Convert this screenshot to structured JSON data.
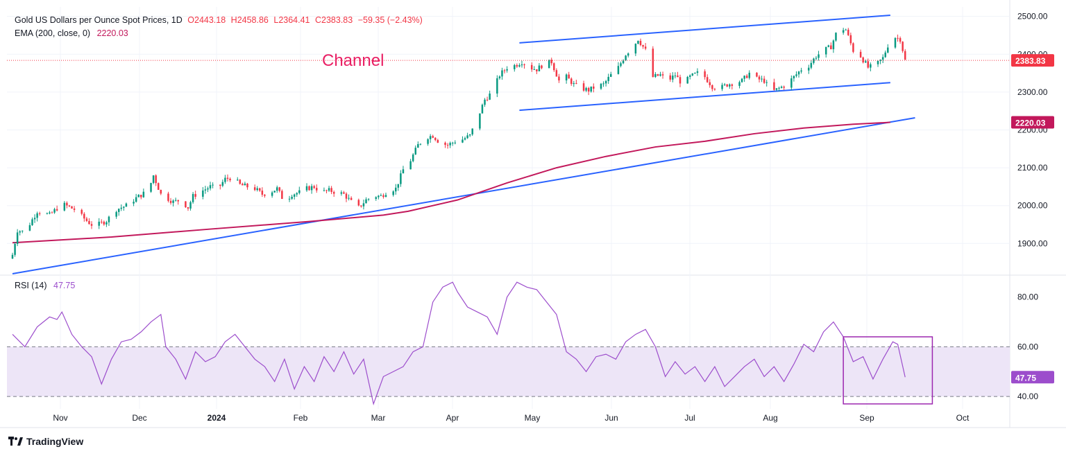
{
  "header": {
    "title": "Gold US Dollars per Ounce Spot Prices, 1D",
    "open": "O2443.18",
    "high": "H2458.86",
    "low": "L2364.41",
    "close": "C2383.83",
    "change": "−59.35 (−2.43%)",
    "ema_label": "EMA (200, close, 0)",
    "ema_value": "2220.03",
    "rsi_label": "RSI (14)",
    "rsi_value": "47.75"
  },
  "annotation": "Channel",
  "brand": "TradingView",
  "colors": {
    "up": "#089981",
    "down": "#f23645",
    "ema": "#c2185b",
    "trendline": "#2962ff",
    "rsi": "#9c4dcc",
    "rsi_band": "#ede5f7",
    "box": "#9c27b0"
  },
  "chart_data": [
    {
      "type": "candlestick",
      "title": "Gold US Dollars per Ounce Spot Prices, 1D",
      "x_ticks": [
        "Nov",
        "Dec",
        "2024",
        "Feb",
        "Mar",
        "Apr",
        "May",
        "Jun",
        "Jul",
        "Aug",
        "Sep",
        "Oct"
      ],
      "y_ticks": [
        1900,
        2000,
        2100,
        2200,
        2300,
        2400,
        2500
      ],
      "ylim": [
        1820,
        2525
      ],
      "close_path": [
        [
          0,
          1870
        ],
        [
          2,
          1935
        ],
        [
          5,
          1930
        ],
        [
          10,
          1985
        ],
        [
          15,
          1975
        ],
        [
          20,
          2005
        ],
        [
          25,
          1990
        ],
        [
          30,
          1960
        ],
        [
          33,
          1945
        ],
        [
          38,
          1960
        ],
        [
          42,
          1990
        ],
        [
          46,
          2000
        ],
        [
          50,
          2020
        ],
        [
          55,
          2040
        ],
        [
          57,
          2080
        ],
        [
          60,
          2030
        ],
        [
          65,
          2010
        ],
        [
          68,
          2015
        ],
        [
          71,
          1995
        ],
        [
          73,
          2025
        ],
        [
          77,
          2040
        ],
        [
          80,
          2050
        ],
        [
          83,
          2045
        ],
        [
          86,
          2070
        ],
        [
          89,
          2075
        ],
        [
          92,
          2055
        ],
        [
          95,
          2050
        ],
        [
          98,
          2045
        ],
        [
          101,
          2030
        ],
        [
          104,
          2035
        ],
        [
          107,
          2045
        ],
        [
          110,
          2010
        ],
        [
          113,
          2030
        ],
        [
          116,
          2035
        ],
        [
          119,
          2045
        ],
        [
          122,
          2050
        ],
        [
          125,
          2035
        ],
        [
          128,
          2040
        ],
        [
          131,
          2035
        ],
        [
          134,
          2030
        ],
        [
          137,
          2010
        ],
        [
          140,
          1995
        ],
        [
          143,
          2015
        ],
        [
          146,
          2025
        ],
        [
          149,
          2025
        ],
        [
          152,
          2040
        ],
        [
          155,
          2045
        ],
        [
          158,
          2095
        ],
        [
          161,
          2120
        ],
        [
          164,
          2160
        ],
        [
          167,
          2180
        ],
        [
          170,
          2185
        ],
        [
          173,
          2165
        ],
        [
          176,
          2160
        ],
        [
          179,
          2170
        ],
        [
          182,
          2175
        ],
        [
          185,
          2185
        ],
        [
          188,
          2230
        ],
        [
          191,
          2280
        ],
        [
          194,
          2300
        ],
        [
          197,
          2345
        ],
        [
          200,
          2365
        ],
        [
          203,
          2370
        ],
        [
          206,
          2380
        ],
        [
          209,
          2365
        ],
        [
          212,
          2360
        ],
        [
          215,
          2375
        ],
        [
          218,
          2380
        ],
        [
          221,
          2330
        ],
        [
          224,
          2340
        ],
        [
          227,
          2320
        ],
        [
          230,
          2310
        ],
        [
          233,
          2305
        ],
        [
          236,
          2315
        ],
        [
          239,
          2320
        ],
        [
          242,
          2345
        ],
        [
          245,
          2365
        ],
        [
          248,
          2400
        ],
        [
          251,
          2420
        ],
        [
          253,
          2440
        ],
        [
          256,
          2410
        ],
        [
          259,
          2340
        ],
        [
          262,
          2345
        ],
        [
          265,
          2330
        ],
        [
          268,
          2345
        ],
        [
          271,
          2320
        ],
        [
          274,
          2340
        ],
        [
          277,
          2350
        ],
        [
          280,
          2340
        ],
        [
          283,
          2315
        ],
        [
          286,
          2310
        ],
        [
          289,
          2320
        ],
        [
          292,
          2325
        ],
        [
          295,
          2330
        ],
        [
          298,
          2350
        ],
        [
          301,
          2335
        ],
        [
          304,
          2330
        ],
        [
          307,
          2300
        ],
        [
          310,
          2310
        ],
        [
          313,
          2320
        ],
        [
          316,
          2340
        ],
        [
          319,
          2360
        ],
        [
          322,
          2370
        ],
        [
          325,
          2395
        ],
        [
          328,
          2410
        ],
        [
          331,
          2420
        ],
        [
          334,
          2470
        ],
        [
          337,
          2465
        ],
        [
          340,
          2410
        ],
        [
          343,
          2395
        ],
        [
          346,
          2365
        ],
        [
          349,
          2370
        ],
        [
          352,
          2390
        ],
        [
          355,
          2440
        ],
        [
          357,
          2445
        ],
        [
          359,
          2440
        ],
        [
          361,
          2383.83
        ]
      ],
      "ema200": [
        [
          0,
          1902
        ],
        [
          40,
          1917
        ],
        [
          80,
          1938
        ],
        [
          120,
          1958
        ],
        [
          150,
          1975
        ],
        [
          160,
          1985
        ],
        [
          180,
          2015
        ],
        [
          200,
          2060
        ],
        [
          220,
          2100
        ],
        [
          240,
          2130
        ],
        [
          260,
          2155
        ],
        [
          280,
          2170
        ],
        [
          300,
          2190
        ],
        [
          320,
          2205
        ],
        [
          340,
          2215
        ],
        [
          355,
          2220.03
        ]
      ],
      "channel_upper": [
        [
          205,
          2430
        ],
        [
          355,
          2503
        ]
      ],
      "channel_lower": [
        [
          205,
          2252
        ],
        [
          355,
          2325
        ]
      ],
      "trendline": [
        [
          0,
          1820
        ],
        [
          365,
          2232
        ]
      ],
      "last_price": "2383.83",
      "ema_last": "2220.03"
    },
    {
      "type": "line",
      "title": "RSI (14)",
      "y_ticks": [
        40,
        60,
        80
      ],
      "ylim": [
        35,
        88
      ],
      "band": [
        40,
        60
      ],
      "values_path": [
        [
          0,
          65
        ],
        [
          5,
          60
        ],
        [
          10,
          68
        ],
        [
          15,
          72
        ],
        [
          18,
          71
        ],
        [
          20,
          74
        ],
        [
          24,
          65
        ],
        [
          28,
          60
        ],
        [
          32,
          56
        ],
        [
          36,
          45
        ],
        [
          40,
          55
        ],
        [
          44,
          62
        ],
        [
          48,
          63
        ],
        [
          52,
          66
        ],
        [
          56,
          70
        ],
        [
          60,
          73
        ],
        [
          62,
          60
        ],
        [
          66,
          55
        ],
        [
          70,
          47
        ],
        [
          74,
          58
        ],
        [
          78,
          54
        ],
        [
          82,
          56
        ],
        [
          86,
          62
        ],
        [
          90,
          65
        ],
        [
          94,
          60
        ],
        [
          98,
          55
        ],
        [
          102,
          52
        ],
        [
          106,
          46
        ],
        [
          110,
          55
        ],
        [
          114,
          43
        ],
        [
          118,
          52
        ],
        [
          122,
          46
        ],
        [
          126,
          56
        ],
        [
          130,
          50
        ],
        [
          134,
          58
        ],
        [
          138,
          49
        ],
        [
          142,
          55
        ],
        [
          146,
          37
        ],
        [
          150,
          48
        ],
        [
          154,
          50
        ],
        [
          158,
          52
        ],
        [
          162,
          58
        ],
        [
          166,
          60
        ],
        [
          170,
          78
        ],
        [
          174,
          84
        ],
        [
          178,
          86
        ],
        [
          180,
          82
        ],
        [
          184,
          76
        ],
        [
          188,
          74
        ],
        [
          192,
          72
        ],
        [
          196,
          65
        ],
        [
          200,
          80
        ],
        [
          204,
          86
        ],
        [
          208,
          84
        ],
        [
          212,
          83
        ],
        [
          216,
          78
        ],
        [
          220,
          73
        ],
        [
          224,
          58
        ],
        [
          228,
          55
        ],
        [
          232,
          50
        ],
        [
          236,
          56
        ],
        [
          240,
          57
        ],
        [
          244,
          55
        ],
        [
          248,
          62
        ],
        [
          252,
          65
        ],
        [
          256,
          67
        ],
        [
          260,
          60
        ],
        [
          264,
          48
        ],
        [
          268,
          54
        ],
        [
          272,
          49
        ],
        [
          276,
          52
        ],
        [
          280,
          46
        ],
        [
          284,
          52
        ],
        [
          288,
          44
        ],
        [
          292,
          48
        ],
        [
          296,
          52
        ],
        [
          300,
          55
        ],
        [
          304,
          48
        ],
        [
          308,
          52
        ],
        [
          312,
          46
        ],
        [
          316,
          53
        ],
        [
          320,
          61
        ],
        [
          324,
          58
        ],
        [
          328,
          66
        ],
        [
          332,
          70
        ],
        [
          336,
          64
        ],
        [
          340,
          54
        ],
        [
          344,
          56
        ],
        [
          348,
          47
        ],
        [
          352,
          55
        ],
        [
          356,
          62
        ],
        [
          358,
          61
        ],
        [
          361,
          47.75
        ]
      ],
      "last_value": "47.75"
    }
  ]
}
